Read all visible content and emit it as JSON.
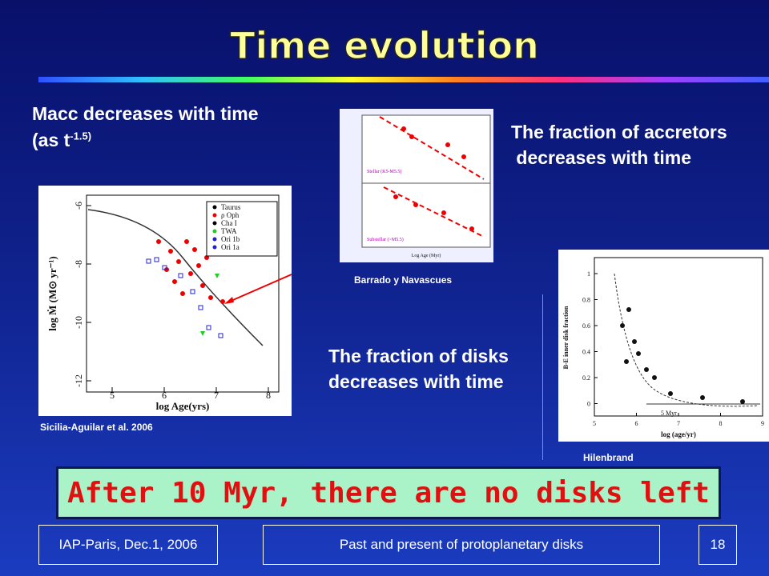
{
  "header": {
    "title": "Time evolution"
  },
  "left_text": {
    "line1": "Macc decreases with time",
    "line2": "(as t",
    "superscript": "-1.5)"
  },
  "right_text": {
    "line1": "The fraction of accretors",
    "line2": " decreases with time"
  },
  "middle_text": {
    "line1": "The fraction of disks",
    "line2": "decreases with time"
  },
  "figure_left": {
    "caption": "Sicilia-Aguilar et al. 2006",
    "xlabel": "log Age(yrs)",
    "ylabel": "log Ṁ (M⊙ yr⁻¹)",
    "xticks": [
      5,
      6,
      7,
      8
    ],
    "yticks": [
      -6,
      -8,
      -10,
      -12
    ],
    "legend": [
      "Taurus",
      "ρ Oph",
      "Cha I",
      "TWA",
      "Ori 1b",
      "Ori 1a"
    ]
  },
  "figure_middle": {
    "caption": "Barrado y Navascues",
    "xlabel": "Log Age (Myr)",
    "upper_label": "Stellar (K5-M5.5)",
    "lower_label": "Substellar (>M5.5)"
  },
  "figure_right": {
    "caption": "Hilenbrand",
    "xlabel": "log (age/yr)",
    "ylabel": "B-E inner disk fraction",
    "marker": "5 Myr",
    "xticks": [
      5,
      6,
      7,
      8,
      9
    ],
    "yticks": [
      1,
      0.8,
      0.6,
      0.4,
      0.2,
      0
    ]
  },
  "banner": "After 10 Myr, there are no disks left",
  "footer": {
    "left": "IAP-Paris, Dec.1, 2006",
    "center": "Past and present of protoplanetary disks",
    "page": "18"
  }
}
